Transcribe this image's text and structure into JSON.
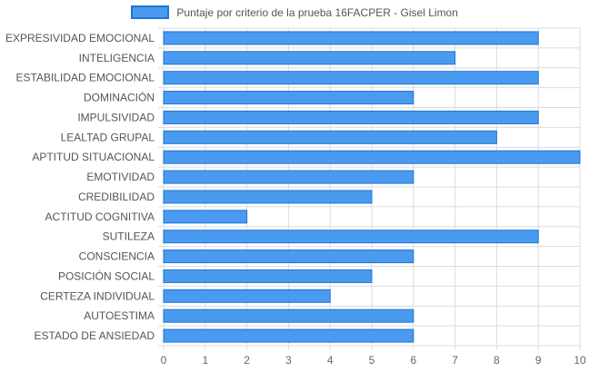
{
  "chart_data": {
    "type": "bar",
    "orientation": "horizontal",
    "legend_position": "top-center",
    "grid": true,
    "xlim": [
      0,
      10
    ],
    "x_ticks": [
      0,
      1,
      2,
      3,
      4,
      5,
      6,
      7,
      8,
      9,
      10
    ],
    "colors": {
      "bar_fill": "#4a9af0",
      "bar_border": "#1e74d8",
      "grid": "#dcdcdc"
    },
    "categories": [
      "EXPRESIVIDAD EMOCIONAL",
      "INTELIGENCIA",
      "ESTABILIDAD EMOCIONAL",
      "DOMINACIÓN",
      "IMPULSIVIDAD",
      "LEALTAD GRUPAL",
      "APTITUD SITUACIONAL",
      "EMOTIVIDAD",
      "CREDIBILIDAD",
      "ACTITUD COGNITIVA",
      "SUTILEZA",
      "CONSCIENCIA",
      "POSICIÓN SOCIAL",
      "CERTEZA INDIVIDUAL",
      "AUTOESTIMA",
      "ESTADO DE ANSIEDAD"
    ],
    "series": [
      {
        "name": "Puntaje por criterio de la prueba 16FACPER - Gisel Limon",
        "values": [
          9,
          7,
          9,
          6,
          9,
          8,
          10,
          6,
          5,
          2,
          9,
          6,
          5,
          4,
          6,
          6
        ]
      }
    ]
  }
}
